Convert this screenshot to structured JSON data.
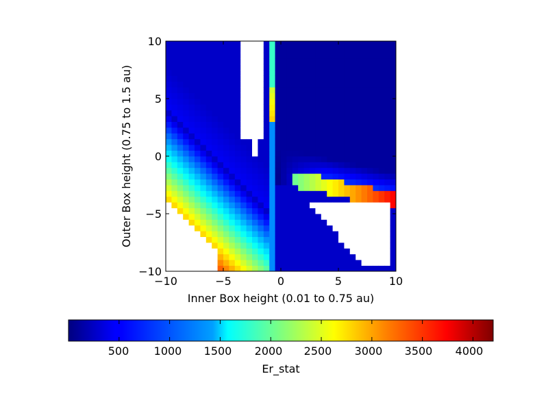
{
  "chart_data": {
    "type": "heatmap",
    "title": "",
    "xlabel": "Inner Box height (0.01 to 0.75 au)",
    "ylabel": "Outer Box height (0.75 to 1.5 au)",
    "xlim": [
      -10,
      10
    ],
    "ylim": [
      -10,
      10
    ],
    "x_ticks": [
      "−10",
      "−5",
      "0",
      "5",
      "10"
    ],
    "y_ticks": [
      "−10",
      "−5",
      "0",
      "5",
      "10"
    ],
    "grid": false,
    "resolution": [
      40,
      40
    ],
    "colormap": "jet",
    "colorbar": {
      "label": "Er_stat",
      "orientation": "horizontal",
      "placement": "bottom",
      "range": [
        0,
        4200
      ],
      "ticks": [
        "500",
        "1000",
        "1500",
        "2000",
        "2500",
        "3000",
        "3500",
        "4000"
      ]
    },
    "missing_color": "#ffffff",
    "regions_note": "Values shown by color; white cells are missing (NaN).",
    "colors": {
      "jet": [
        "#00007f",
        "#0000ff",
        "#007fff",
        "#00ffff",
        "#7fff7f",
        "#ffff00",
        "#ff7f00",
        "#ff0000",
        "#7f0000"
      ]
    }
  }
}
